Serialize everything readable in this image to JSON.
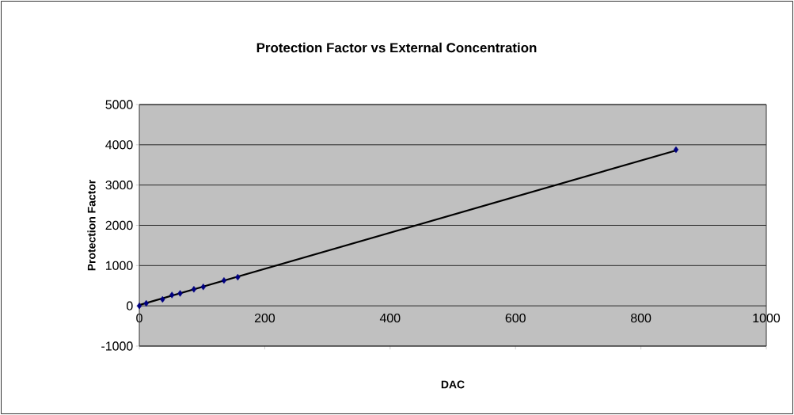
{
  "chart_data": {
    "type": "scatter",
    "title": "Protection Factor vs External Concentration",
    "xlabel": "DAC",
    "ylabel": "Protection Factor",
    "xlim": [
      0,
      1000
    ],
    "xticks": [
      0,
      200,
      400,
      600,
      800,
      1000
    ],
    "ylim": [
      -1000,
      5000
    ],
    "yticks": [
      -1000,
      0,
      1000,
      2000,
      3000,
      4000,
      5000
    ],
    "grid": "y",
    "series": [
      {
        "color": "#000080",
        "marker": "diamond",
        "x": [
          0,
          11,
          37,
          52,
          65,
          87,
          102,
          135,
          157,
          856
        ],
        "values": [
          0,
          60,
          160,
          270,
          310,
          410,
          470,
          630,
          710,
          3880
        ]
      },
      {
        "type": "line",
        "color": "#000000",
        "marker": "none",
        "x": [
          0,
          856
        ],
        "values": [
          20,
          3860
        ]
      }
    ]
  }
}
